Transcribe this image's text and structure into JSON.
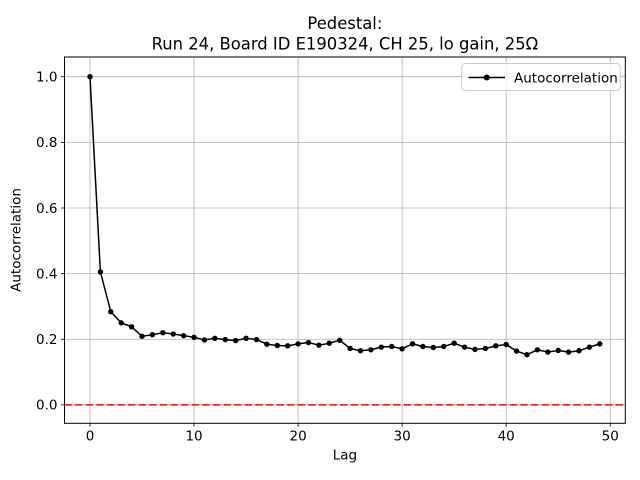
{
  "chart_data": {
    "type": "line",
    "title": "Pedestal:\nRun 24, Board ID E190324, CH 25, lo gain, 25Ω",
    "title_line1": "Pedestal:",
    "title_line2": "Run 24, Board ID E190324, CH 25, lo gain, 25Ω",
    "xlabel": "Lag",
    "ylabel": "Autocorrelation",
    "grid": true,
    "xlim": [
      -2.45,
      51.45
    ],
    "ylim": [
      -0.056,
      1.06
    ],
    "xticks": [
      0,
      10,
      20,
      30,
      40,
      50
    ],
    "xtick_labels": [
      "0",
      "10",
      "20",
      "30",
      "40",
      "50"
    ],
    "yticks": [
      0.0,
      0.2,
      0.4,
      0.6,
      0.8,
      1.0
    ],
    "ytick_labels": [
      "0.0",
      "0.2",
      "0.4",
      "0.6",
      "0.8",
      "1.0"
    ],
    "legend": {
      "position": "upper right",
      "entries": [
        {
          "label": "Autocorrelation",
          "marker": "point",
          "line": "solid"
        }
      ]
    },
    "zero_line": {
      "y": 0.0,
      "style": "dashed"
    },
    "colors": {
      "series": "#000000",
      "zero_line": "#ff0000",
      "grid": "#b0b0b0",
      "spine": "#000000",
      "background": "#ffffff",
      "legend_border": "#cccccc"
    },
    "x": [
      0,
      1,
      2,
      3,
      4,
      5,
      6,
      7,
      8,
      9,
      10,
      11,
      12,
      13,
      14,
      15,
      16,
      17,
      18,
      19,
      20,
      21,
      22,
      23,
      24,
      25,
      26,
      27,
      28,
      29,
      30,
      31,
      32,
      33,
      34,
      35,
      36,
      37,
      38,
      39,
      40,
      41,
      42,
      43,
      44,
      45,
      46,
      47,
      48,
      49
    ],
    "series": [
      {
        "name": "Autocorrelation",
        "marker": "point",
        "values": [
          1.0,
          0.405,
          0.284,
          0.25,
          0.238,
          0.209,
          0.214,
          0.22,
          0.216,
          0.211,
          0.206,
          0.198,
          0.203,
          0.199,
          0.196,
          0.203,
          0.199,
          0.185,
          0.181,
          0.18,
          0.186,
          0.19,
          0.182,
          0.188,
          0.197,
          0.172,
          0.165,
          0.168,
          0.176,
          0.178,
          0.171,
          0.186,
          0.178,
          0.175,
          0.178,
          0.188,
          0.176,
          0.169,
          0.172,
          0.18,
          0.184,
          0.164,
          0.153,
          0.168,
          0.161,
          0.166,
          0.161,
          0.165,
          0.176,
          0.186
        ]
      }
    ]
  }
}
